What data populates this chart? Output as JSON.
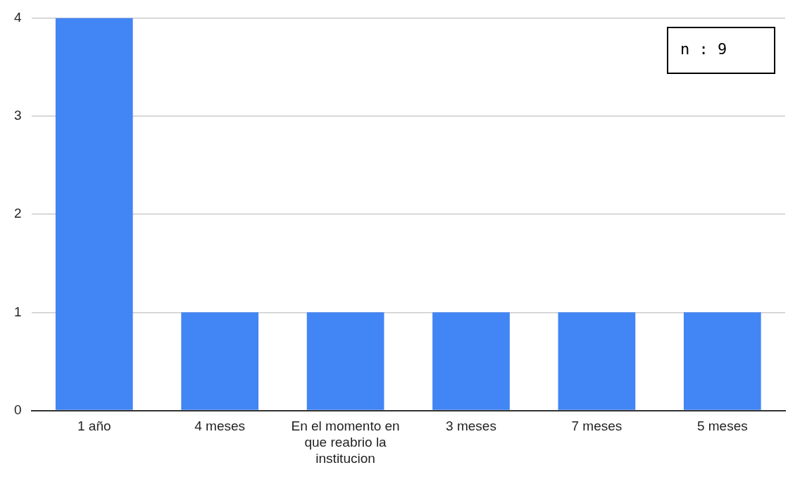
{
  "chart_data": {
    "type": "bar",
    "categories": [
      "1 año",
      "4 meses",
      "En el momento en que reabrio la institucion",
      "3 meses",
      "7 meses",
      "5 meses"
    ],
    "values": [
      4,
      1,
      1,
      1,
      1,
      1
    ],
    "color": "#4285f4",
    "ylim": [
      0,
      4
    ],
    "yticks": [
      0,
      1,
      2,
      3,
      4
    ],
    "grid": "y",
    "annotations": [
      "n : 9"
    ]
  }
}
